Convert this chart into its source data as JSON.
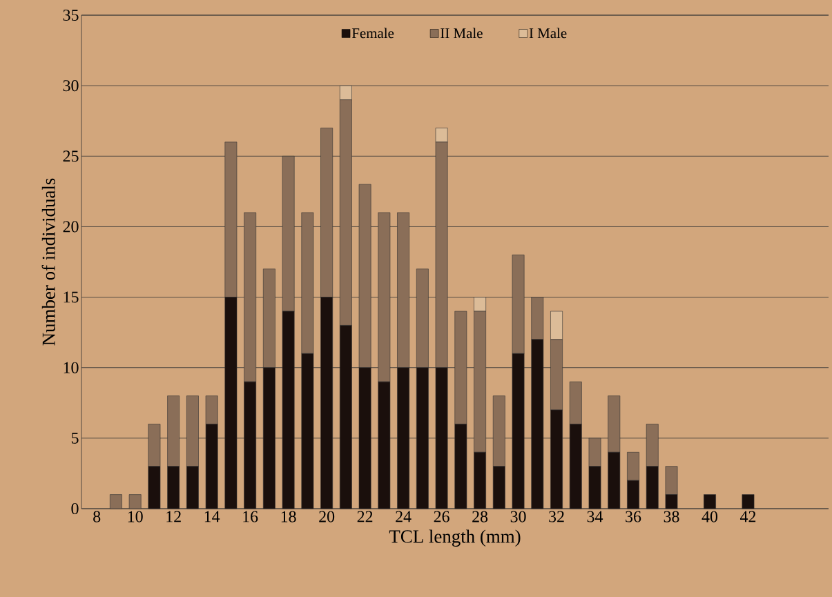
{
  "chart_data": {
    "type": "bar",
    "stacked": true,
    "xlabel": "TCL length (mm)",
    "ylabel": "Number of individuals",
    "categories": [
      "8",
      null,
      "10",
      null,
      "12",
      null,
      "14",
      null,
      "16",
      null,
      "18",
      null,
      "20",
      null,
      "22",
      null,
      "24",
      null,
      "26",
      null,
      "28",
      null,
      "30",
      null,
      "32",
      null,
      "34",
      null,
      "36",
      null,
      "38",
      null,
      "40",
      null,
      "42"
    ],
    "series": [
      {
        "name": "Female",
        "color": "#1a0f0c",
        "values": [
          null,
          null,
          null,
          3,
          3,
          3,
          6,
          15,
          9,
          10,
          14,
          11,
          15,
          13,
          10,
          9,
          10,
          10,
          10,
          6,
          4,
          3,
          11,
          12,
          7,
          6,
          3,
          4,
          2,
          3,
          1,
          null,
          1,
          null,
          1
        ]
      },
      {
        "name": "II Male",
        "color": "#8a6e58",
        "values": [
          null,
          1,
          1,
          3,
          5,
          5,
          2,
          11,
          12,
          7,
          11,
          10,
          12,
          16,
          13,
          12,
          11,
          7,
          16,
          8,
          10,
          5,
          7,
          3,
          5,
          3,
          2,
          4,
          2,
          3,
          2,
          null,
          null,
          null,
          null
        ]
      },
      {
        "name": "I Male",
        "color": "#dcbc98",
        "values": [
          null,
          null,
          null,
          null,
          null,
          null,
          null,
          null,
          null,
          null,
          null,
          null,
          null,
          1,
          null,
          null,
          null,
          null,
          1,
          null,
          1,
          null,
          null,
          null,
          2,
          null,
          null,
          null,
          null,
          null,
          null,
          null,
          null,
          null,
          null
        ]
      }
    ],
    "ylim": [
      0,
      35
    ],
    "yticks": [
      0,
      5,
      10,
      15,
      20,
      25,
      30,
      35
    ],
    "grid": "y",
    "legend": "top"
  }
}
